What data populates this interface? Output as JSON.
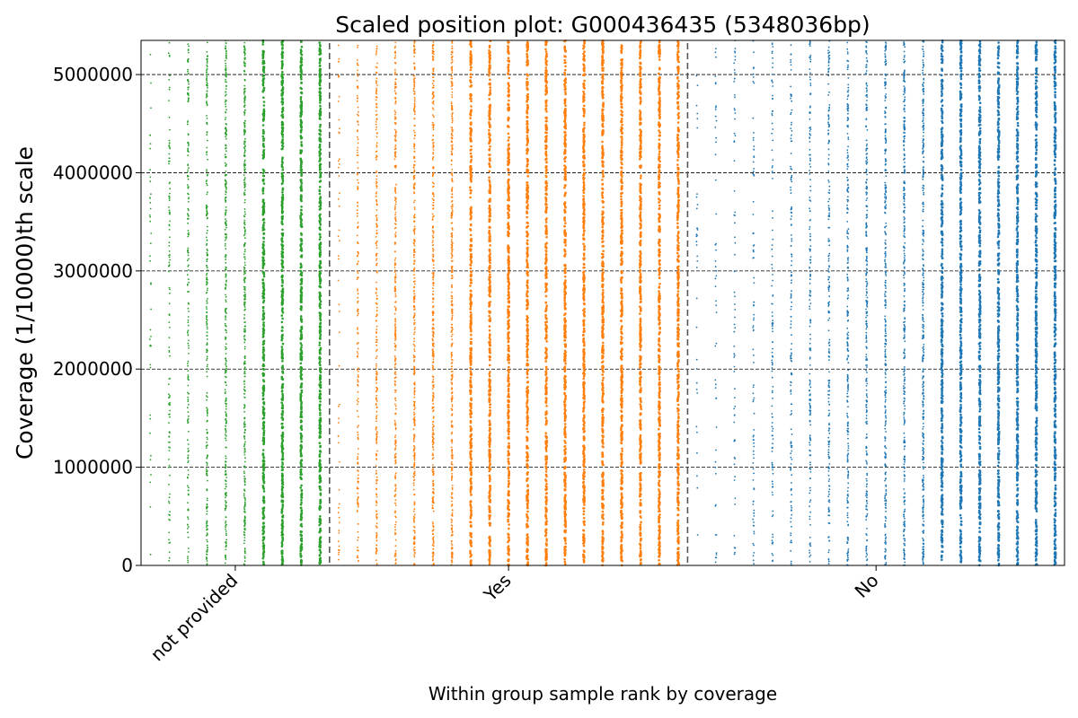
{
  "chart_data": {
    "type": "scatter",
    "title": "Scaled position plot: G000436435 (5348036bp)",
    "xlabel": "Within group sample rank by coverage",
    "ylabel": "Coverage (1/10000)th scale",
    "ylim": [
      0,
      5348036
    ],
    "y_ticks": [
      0,
      1000000,
      2000000,
      3000000,
      4000000,
      5000000
    ],
    "y_tick_labels": [
      "0",
      "1000000",
      "2000000",
      "3000000",
      "4000000",
      "5000000"
    ],
    "grid": "horizontal dashed",
    "total_samples": 49,
    "groups": [
      {
        "name": "not provided",
        "color": "#2ca02c",
        "sample_count": 10,
        "sample_density": [
          0.03,
          0.22,
          0.38,
          0.55,
          0.72,
          0.85,
          0.92,
          0.96,
          0.98,
          0.99
        ]
      },
      {
        "name": "Yes",
        "color": "#ff7f0e",
        "sample_count": 19,
        "sample_density": [
          0.06,
          0.35,
          0.55,
          0.68,
          0.78,
          0.85,
          0.9,
          0.93,
          0.95,
          0.96,
          0.97,
          0.98,
          0.98,
          0.99,
          0.99,
          0.99,
          0.99,
          0.99,
          0.99
        ]
      },
      {
        "name": "No",
        "color": "#1f77b4",
        "sample_count": 20,
        "sample_density": [
          0.01,
          0.05,
          0.1,
          0.16,
          0.22,
          0.3,
          0.38,
          0.46,
          0.55,
          0.63,
          0.72,
          0.8,
          0.87,
          0.92,
          0.95,
          0.97,
          0.98,
          0.99,
          0.99,
          0.99
        ]
      }
    ]
  }
}
